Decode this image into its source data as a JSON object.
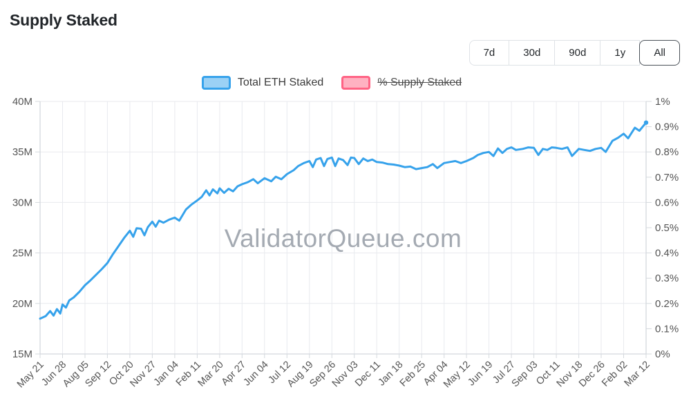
{
  "page": {
    "title": "Supply Staked"
  },
  "controls": {
    "ranges": [
      "7d",
      "30d",
      "90d",
      "1y",
      "All"
    ],
    "selected": "All"
  },
  "legend": {
    "items": [
      {
        "label": "Total ETH Staked",
        "fill": "#9BD1F5",
        "border": "#36A2EB",
        "disabled": false
      },
      {
        "label": "% Supply Staked",
        "fill": "#FFB1C1",
        "border": "#FF6384",
        "disabled": true
      }
    ]
  },
  "watermark": "ValidatorQueue.com",
  "chart_data": {
    "type": "line",
    "title": "Supply Staked",
    "series": [
      {
        "name": "Total ETH Staked",
        "axis": "left",
        "color": "#36A2EB",
        "visible": true
      },
      {
        "name": "% Supply Staked",
        "axis": "right",
        "color": "#FF6384",
        "visible": false
      }
    ],
    "y_left_ticks": [
      "40M",
      "35M",
      "30M",
      "25M",
      "20M",
      "15M"
    ],
    "y_left_range_millions": [
      15,
      40
    ],
    "y_right_ticks": [
      "1%",
      "0.9%",
      "0.8%",
      "0.7%",
      "0.6%",
      "0.5%",
      "0.4%",
      "0.3%",
      "0.2%",
      "0.1%",
      "0%"
    ],
    "y_right_range_percent": [
      0,
      1
    ],
    "x_tick_labels": [
      "May 21",
      "Jun 28",
      "Aug 05",
      "Sep 12",
      "Oct 20",
      "Nov 27",
      "Jan 04",
      "Feb 11",
      "Mar 20",
      "Apr 27",
      "Jun 04",
      "Jul 12",
      "Aug 19",
      "Sep 26",
      "Nov 03",
      "Dec 11",
      "Jan 18",
      "Feb 25",
      "Apr 04",
      "May 12",
      "Jun 19",
      "Jul 27",
      "Sep 03",
      "Oct 11",
      "Nov 18",
      "Dec 26",
      "Feb 02",
      "Mar 12"
    ],
    "grid": {
      "horizontal": true,
      "vertical": true
    },
    "legend_position": "top",
    "points_units": "x in tick-index units (0 = May 21 ... 27 = Mar 12), y in millions of ETH staked",
    "points": [
      [
        0,
        18.5
      ],
      [
        0.25,
        18.75
      ],
      [
        0.45,
        19.25
      ],
      [
        0.6,
        18.8
      ],
      [
        0.75,
        19.45
      ],
      [
        0.9,
        19.0
      ],
      [
        1,
        19.9
      ],
      [
        1.15,
        19.6
      ],
      [
        1.3,
        20.3
      ],
      [
        1.5,
        20.6
      ],
      [
        1.75,
        21.15
      ],
      [
        2,
        21.8
      ],
      [
        2.25,
        22.3
      ],
      [
        2.5,
        22.85
      ],
      [
        2.75,
        23.4
      ],
      [
        3,
        24.0
      ],
      [
        3.25,
        24.9
      ],
      [
        3.5,
        25.7
      ],
      [
        3.75,
        26.5
      ],
      [
        4,
        27.2
      ],
      [
        4.15,
        26.6
      ],
      [
        4.3,
        27.45
      ],
      [
        4.5,
        27.4
      ],
      [
        4.65,
        26.75
      ],
      [
        4.8,
        27.55
      ],
      [
        5,
        28.1
      ],
      [
        5.15,
        27.6
      ],
      [
        5.3,
        28.2
      ],
      [
        5.5,
        28.0
      ],
      [
        5.75,
        28.3
      ],
      [
        6,
        28.5
      ],
      [
        6.2,
        28.2
      ],
      [
        6.5,
        29.3
      ],
      [
        6.75,
        29.8
      ],
      [
        7,
        30.2
      ],
      [
        7.2,
        30.55
      ],
      [
        7.4,
        31.2
      ],
      [
        7.55,
        30.7
      ],
      [
        7.7,
        31.3
      ],
      [
        7.9,
        30.9
      ],
      [
        8,
        31.4
      ],
      [
        8.2,
        30.95
      ],
      [
        8.4,
        31.35
      ],
      [
        8.6,
        31.1
      ],
      [
        8.8,
        31.6
      ],
      [
        9,
        31.8
      ],
      [
        9.25,
        32.0
      ],
      [
        9.5,
        32.3
      ],
      [
        9.7,
        31.9
      ],
      [
        10,
        32.4
      ],
      [
        10.3,
        32.1
      ],
      [
        10.5,
        32.55
      ],
      [
        10.75,
        32.3
      ],
      [
        11,
        32.8
      ],
      [
        11.3,
        33.2
      ],
      [
        11.5,
        33.6
      ],
      [
        11.75,
        33.9
      ],
      [
        12,
        34.1
      ],
      [
        12.15,
        33.5
      ],
      [
        12.3,
        34.25
      ],
      [
        12.5,
        34.4
      ],
      [
        12.65,
        33.6
      ],
      [
        12.8,
        34.3
      ],
      [
        13,
        34.45
      ],
      [
        13.15,
        33.6
      ],
      [
        13.3,
        34.35
      ],
      [
        13.5,
        34.2
      ],
      [
        13.7,
        33.7
      ],
      [
        13.85,
        34.45
      ],
      [
        14,
        34.4
      ],
      [
        14.2,
        33.8
      ],
      [
        14.4,
        34.35
      ],
      [
        14.6,
        34.1
      ],
      [
        14.8,
        34.25
      ],
      [
        15,
        34.0
      ],
      [
        15.25,
        33.95
      ],
      [
        15.5,
        33.8
      ],
      [
        15.75,
        33.75
      ],
      [
        16,
        33.65
      ],
      [
        16.25,
        33.5
      ],
      [
        16.5,
        33.55
      ],
      [
        16.75,
        33.3
      ],
      [
        17,
        33.4
      ],
      [
        17.25,
        33.5
      ],
      [
        17.5,
        33.8
      ],
      [
        17.7,
        33.4
      ],
      [
        18,
        33.9
      ],
      [
        18.25,
        34.0
      ],
      [
        18.5,
        34.1
      ],
      [
        18.75,
        33.9
      ],
      [
        19,
        34.1
      ],
      [
        19.3,
        34.4
      ],
      [
        19.5,
        34.7
      ],
      [
        19.75,
        34.9
      ],
      [
        20,
        35.0
      ],
      [
        20.2,
        34.6
      ],
      [
        20.4,
        35.35
      ],
      [
        20.6,
        34.9
      ],
      [
        20.8,
        35.3
      ],
      [
        21,
        35.45
      ],
      [
        21.2,
        35.2
      ],
      [
        21.5,
        35.3
      ],
      [
        21.75,
        35.45
      ],
      [
        22,
        35.4
      ],
      [
        22.2,
        34.7
      ],
      [
        22.4,
        35.3
      ],
      [
        22.6,
        35.2
      ],
      [
        22.8,
        35.45
      ],
      [
        23,
        35.4
      ],
      [
        23.25,
        35.3
      ],
      [
        23.5,
        35.45
      ],
      [
        23.7,
        34.6
      ],
      [
        24,
        35.3
      ],
      [
        24.25,
        35.2
      ],
      [
        24.5,
        35.1
      ],
      [
        24.75,
        35.3
      ],
      [
        25,
        35.4
      ],
      [
        25.2,
        35.0
      ],
      [
        25.5,
        36.1
      ],
      [
        25.75,
        36.4
      ],
      [
        26,
        36.8
      ],
      [
        26.2,
        36.35
      ],
      [
        26.5,
        37.4
      ],
      [
        26.7,
        37.1
      ],
      [
        27,
        37.9
      ]
    ]
  }
}
